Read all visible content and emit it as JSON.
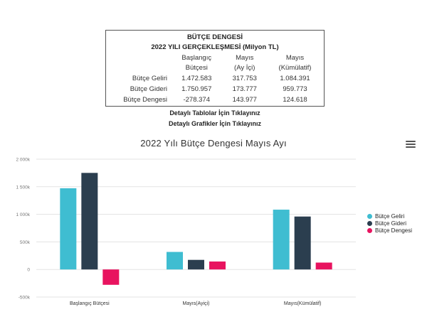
{
  "summary": {
    "title": "BÜTÇE DENGESİ",
    "subtitle": "2022 YILI GERÇEKLEŞMESİ (Milyon TL)",
    "columns": [
      [
        "Başlangıç",
        "Bütçesi"
      ],
      [
        "Mayıs",
        "(Ay İçi)"
      ],
      [
        "Mayıs",
        "(Kümülatif)"
      ]
    ],
    "rows": [
      {
        "label": "Bütçe Geliri",
        "values": [
          "1.472.583",
          "317.753",
          "1.084.391"
        ]
      },
      {
        "label": "Bütçe Gideri",
        "values": [
          "1.750.957",
          "173.777",
          "959.773"
        ]
      },
      {
        "label": "Bütçe Dengesi",
        "values": [
          "-278.374",
          "143.977",
          "124.618"
        ]
      }
    ]
  },
  "links": {
    "tables": "Detaylı Tablolar İçin Tıklayınız",
    "charts": "Detaylı Grafikler İçin Tıklayınız"
  },
  "menu_icon": "hamburger-menu-icon",
  "chart_data": {
    "type": "bar",
    "title": "2022 Yılı Bütçe Dengesi Mayıs Ayı",
    "categories": [
      "Başlangıç Bütçesi",
      "Mayıs(Ayiçi)",
      "Mayıs(Kümülatif)"
    ],
    "series": [
      {
        "name": "Bütçe Geliri",
        "color": "#3fbdd1",
        "values": [
          1472583,
          317753,
          1084391
        ]
      },
      {
        "name": "Bütçe Gideri",
        "color": "#2b3e4f",
        "values": [
          1750957,
          173777,
          959773
        ]
      },
      {
        "name": "Bütçe Dengesi",
        "color": "#e8135f",
        "values": [
          -278374,
          143977,
          124618
        ]
      }
    ],
    "yticks": [
      {
        "value": 2000000,
        "label": "2 000k"
      },
      {
        "value": 1500000,
        "label": "1 500k"
      },
      {
        "value": 1000000,
        "label": "1 000k"
      },
      {
        "value": 500000,
        "label": "500k"
      },
      {
        "value": 0,
        "label": "0"
      },
      {
        "value": -500000,
        "label": "-500k"
      }
    ],
    "ylim": [
      -500000,
      2000000
    ],
    "xlabel": "",
    "ylabel": "",
    "grid": true,
    "legend_position": "right"
  }
}
